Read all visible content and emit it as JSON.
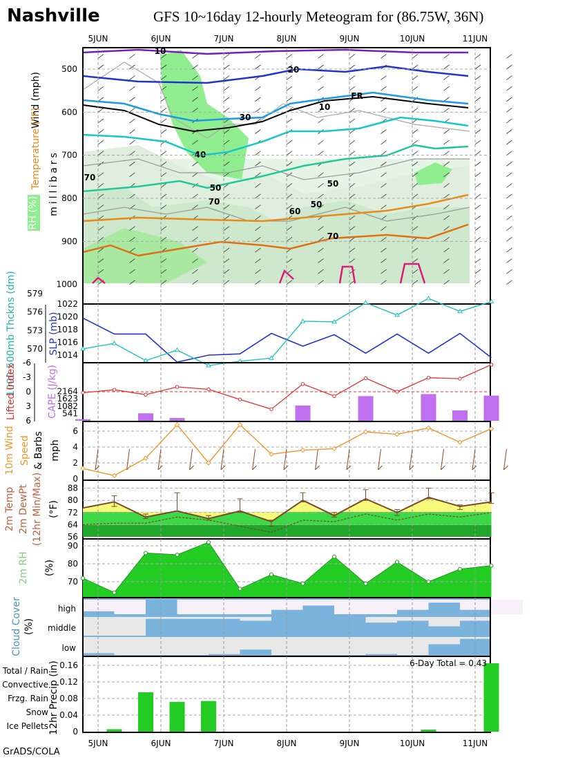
{
  "station": "Nashville",
  "title": "GFS 10~16day 12-hourly Meteogram for (86.75W, 36N)",
  "credit": "GrADS/COLA",
  "colors": {
    "rh_fill": "#90ee90",
    "rh_fill_light": "#e6f4e6",
    "temperature_orange": "#e88a1a",
    "temperature_cyan": "#15c8c8",
    "wind_purple": "#7a1fb5",
    "slp_blue": "#2233cc",
    "thickness_cyan": "#20c0c0",
    "lifted_red": "#e23030",
    "cape_purple": "#bf6fef",
    "wind10m_orange": "#f0962a",
    "temp_yellow": "#f5fa78",
    "dewpt_green": "#3cd845",
    "rh2m_green": "#22cc22",
    "cloud_blue": "#7ab4dc",
    "precip_green": "#22cc22"
  },
  "chart_data": [
    {
      "type": "contour",
      "panel": "upper_air",
      "xlabels": [
        "5JUN",
        "6JUN",
        "7JUN",
        "8JUN",
        "9JUN",
        "10JUN",
        "11JUN"
      ],
      "ylabel": "millibars",
      "yticks": [
        "500",
        "600",
        "700",
        "800",
        "900",
        "1000"
      ],
      "legend": [
        "Wind (mph)",
        "Temperature (°F)",
        "RH (%)"
      ],
      "isotherm_labels": [
        "10",
        "20",
        "30",
        "40",
        "50",
        "60",
        "FR",
        "10",
        "50",
        "70",
        "50",
        "70",
        "70"
      ],
      "freezing_label": "FR"
    },
    {
      "type": "line",
      "panel": "slp_thickness",
      "series": [
        {
          "name": "SLP (mb)",
          "values": [
            1019.8,
            1017.3,
            1017.3,
            1012.9,
            1014.0,
            1014.2,
            1017.4,
            1015.4,
            1017.2,
            1014.3,
            1017.3,
            1014.3,
            1017.4,
            1013.6
          ]
        },
        {
          "name": "1000-500mb Thckns (dm)",
          "values": [
            570.0,
            570.9,
            568.1,
            569.8,
            567.3,
            568.0,
            568.5,
            574.5,
            574.4,
            577.5,
            575.5,
            578.2,
            576.1,
            577.7
          ]
        }
      ],
      "left_ticks": [
        "579",
        "576",
        "573",
        "570"
      ],
      "right_ticks": [
        "1022",
        "1020",
        "1018",
        "1016",
        "1014"
      ],
      "ylabel_left": "1000-500mb Thckns (dm)",
      "ylabel_right": "SLP (mb)"
    },
    {
      "type": "bar_line",
      "panel": "cape_li",
      "series": [
        {
          "name": "CAPE (J/kg)",
          "values": [
            113,
            0,
            550,
            203,
            0,
            0,
            0,
            1125,
            0,
            1818,
            0,
            1970,
            763,
            1859
          ]
        },
        {
          "name": "Lifted Index",
          "values": [
            0.2,
            -0.4,
            0.6,
            -1.0,
            -0.5,
            1.6,
            3.6,
            -1.6,
            0.9,
            -2.8,
            0.0,
            -2.9,
            -2.7,
            -5.6
          ]
        }
      ],
      "left_ticks": [
        "-6",
        "-3",
        "0",
        "3",
        "6"
      ],
      "right_ticks": [
        "2164",
        "1623",
        "1082",
        "541"
      ],
      "ylabel_left": "Lifted Index",
      "ylabel_right": "CAPE (J/kg)"
    },
    {
      "type": "line",
      "panel": "wind10m",
      "series": [
        {
          "name": "10m Wind Speed",
          "values": [
            1.3,
            0.4,
            2.6,
            6.8,
            2.0,
            6.8,
            3.1,
            3.6,
            3.8,
            5.9,
            5.6,
            6.4,
            4.6,
            6.3
          ]
        }
      ],
      "yticks": [
        "0",
        "2",
        "4",
        "6"
      ],
      "ylabel": "10m Wind Speed & Barbs",
      "unit": "mph"
    },
    {
      "type": "area",
      "panel": "temp_dewpt",
      "series": [
        {
          "name": "2m Temp",
          "values": [
            75,
            79,
            69,
            73,
            68,
            73,
            66,
            80,
            70,
            81,
            72,
            82,
            76,
            79
          ]
        },
        {
          "name": "2m DewPt",
          "values": [
            64,
            65,
            65,
            69,
            67,
            63,
            59,
            67,
            66,
            71,
            67,
            71,
            69,
            72
          ]
        },
        {
          "name": "12hr Max",
          "values": [
            null,
            83,
            71,
            85,
            70,
            81,
            67,
            85,
            72,
            87,
            74,
            88,
            77,
            85
          ]
        },
        {
          "name": "12hr Min",
          "values": [
            null,
            76,
            68,
            73,
            67,
            72,
            63,
            79,
            69,
            80,
            70,
            81,
            74,
            78
          ]
        }
      ],
      "yticks": [
        "56",
        "64",
        "72",
        "80",
        "88"
      ],
      "ylabel": "2m Temp 2m DewPt (12hr Min/Max)",
      "unit": "(°F)"
    },
    {
      "type": "area",
      "panel": "rh2m",
      "series": [
        {
          "name": "2m RH",
          "values": [
            72,
            64,
            86,
            85,
            92,
            66,
            74,
            69,
            84,
            69,
            81,
            70,
            77,
            79
          ]
        }
      ],
      "yticks": [
        "70",
        "80",
        "90"
      ],
      "ylabel": "2m RH",
      "unit": "(%)"
    },
    {
      "type": "bar",
      "panel": "cloud_cover",
      "ylabel": "Cloud Cover",
      "unit": "(%)",
      "levels": [
        "high",
        "middle",
        "low"
      ],
      "series": [
        {
          "name": "high",
          "values": [
            20,
            0,
            100,
            0,
            0,
            0,
            30,
            60,
            0,
            0,
            30,
            80,
            30,
            0
          ]
        },
        {
          "name": "middle",
          "values": [
            0,
            0,
            90,
            90,
            90,
            80,
            100,
            100,
            100,
            70,
            80,
            50,
            80,
            100
          ]
        },
        {
          "name": "low",
          "values": [
            10,
            0,
            0,
            0,
            5,
            30,
            0,
            0,
            0,
            5,
            0,
            60,
            90,
            100
          ]
        }
      ]
    },
    {
      "type": "bar",
      "panel": "precip",
      "series": [
        {
          "name": "Total / Rain",
          "values": [
            0,
            0.006,
            0.095,
            0.072,
            0.074,
            0,
            0,
            0,
            0,
            0,
            0,
            0.005,
            0,
            0.165
          ]
        }
      ],
      "yticks": [
        "0",
        "0.04",
        "0.08",
        "0.12",
        "0.16"
      ],
      "ylabel": "12hr Precip (in)",
      "annotation": "6-Day Total = 0.43",
      "legend": [
        "Total / Rain",
        "Convective",
        "Frzg. Rain",
        "Snow",
        "Ice Pellets"
      ]
    }
  ]
}
